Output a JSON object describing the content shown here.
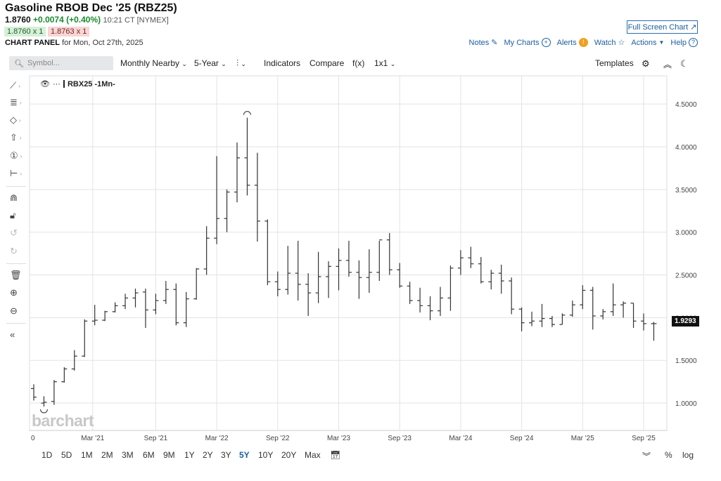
{
  "header": {
    "title": "Gasoline RBOB Dec '25 (RBZ25)",
    "last": "1.8760",
    "change": "+0.0074 (+0.40%)",
    "time": "10:21 CT [NYMEX]",
    "bid": "1.8760 x 1",
    "ask": "1.8763 x 1",
    "panel_label": "CHART PANEL",
    "panel_date": "for Mon, Oct 27th, 2025",
    "full_screen": "Full Screen Chart ↗"
  },
  "links": {
    "notes": "Notes",
    "my_charts": "My Charts",
    "alerts": "Alerts",
    "watch": "Watch",
    "actions": "Actions",
    "help": "Help"
  },
  "toolbar": {
    "search_placeholder": "Symbol...",
    "period": "Monthly Nearby",
    "range": "5-Year",
    "indicators": "Indicators",
    "compare": "Compare",
    "fx": "f(x)",
    "layout": "1x1",
    "templates": "Templates"
  },
  "series_label": "RBX25 -1Mn-",
  "last_price_tag": "1.9293",
  "watermark": "barchart",
  "timeframes": [
    "1D",
    "5D",
    "1M",
    "2M",
    "3M",
    "6M",
    "9M",
    "1Y",
    "2Y",
    "3Y",
    "5Y",
    "10Y",
    "20Y",
    "Max"
  ],
  "active_timeframe": "5Y",
  "bottom_right": {
    "percent": "%",
    "log": "log"
  },
  "colors": {
    "accent": "#1d5fa0",
    "up": "#1a8a2e",
    "bar": "#333333"
  },
  "chart_data": {
    "type": "ohlc",
    "y_ticks": [
      "1.0000",
      "1.5000",
      "2.0000",
      "2.5000",
      "3.0000",
      "3.5000",
      "4.0000",
      "4.5000"
    ],
    "ylim": [
      0.68,
      4.83
    ],
    "x_ticks": [
      {
        "label": "0",
        "month": 0
      },
      {
        "label": "Mar '21",
        "month": 5.8
      },
      {
        "label": "Sep '21",
        "month": 12
      },
      {
        "label": "Mar '22",
        "month": 18
      },
      {
        "label": "Sep '22",
        "month": 24
      },
      {
        "label": "Mar '23",
        "month": 30
      },
      {
        "label": "Sep '23",
        "month": 36
      },
      {
        "label": "Mar '24",
        "month": 42
      },
      {
        "label": "Sep '24",
        "month": 48
      },
      {
        "label": "Mar '25",
        "month": 54
      },
      {
        "label": "Sep '25",
        "month": 60
      }
    ],
    "bars": [
      [
        1.17,
        1.22,
        1.03,
        1.07
      ],
      [
        1.0,
        1.08,
        0.96,
        1.01
      ],
      [
        1.02,
        1.27,
        0.98,
        1.25
      ],
      [
        1.25,
        1.42,
        1.24,
        1.4
      ],
      [
        1.4,
        1.62,
        1.38,
        1.55
      ],
      [
        1.55,
        1.98,
        1.54,
        1.96
      ],
      [
        1.96,
        2.15,
        1.91,
        1.97
      ],
      [
        1.97,
        2.08,
        1.96,
        2.07
      ],
      [
        2.07,
        2.18,
        2.06,
        2.14
      ],
      [
        2.14,
        2.28,
        2.1,
        2.23
      ],
      [
        2.23,
        2.34,
        2.12,
        2.29
      ],
      [
        2.3,
        2.34,
        1.88,
        2.09
      ],
      [
        2.09,
        2.28,
        2.04,
        2.2
      ],
      [
        2.2,
        2.43,
        2.16,
        2.33
      ],
      [
        2.33,
        2.4,
        1.91,
        1.94
      ],
      [
        1.94,
        2.3,
        1.89,
        2.22
      ],
      [
        2.22,
        2.58,
        2.21,
        2.57
      ],
      [
        2.57,
        3.07,
        2.5,
        2.93
      ],
      [
        2.93,
        3.89,
        2.86,
        3.16
      ],
      [
        3.16,
        3.5,
        3.0,
        3.47
      ],
      [
        3.47,
        4.05,
        3.35,
        3.87
      ],
      [
        3.87,
        4.34,
        3.43,
        3.55
      ],
      [
        3.55,
        3.93,
        2.89,
        3.13
      ],
      [
        3.13,
        3.15,
        2.38,
        2.42
      ],
      [
        2.42,
        2.54,
        2.25,
        2.33
      ],
      [
        2.33,
        2.84,
        2.27,
        2.52
      ],
      [
        2.52,
        2.9,
        2.2,
        2.39
      ],
      [
        2.39,
        2.52,
        2.02,
        2.29
      ],
      [
        2.29,
        2.77,
        2.17,
        2.48
      ],
      [
        2.48,
        2.66,
        2.23,
        2.6
      ],
      [
        2.6,
        2.81,
        2.32,
        2.67
      ],
      [
        2.67,
        2.9,
        2.48,
        2.53
      ],
      [
        2.53,
        2.67,
        2.22,
        2.47
      ],
      [
        2.47,
        2.8,
        2.29,
        2.53
      ],
      [
        2.53,
        2.9,
        2.43,
        2.91
      ],
      [
        2.91,
        2.99,
        2.5,
        2.56
      ],
      [
        2.56,
        2.64,
        2.35,
        2.37
      ],
      [
        2.37,
        2.42,
        2.16,
        2.2
      ],
      [
        2.2,
        2.35,
        2.06,
        2.14
      ],
      [
        2.14,
        2.25,
        1.97,
        2.08
      ],
      [
        2.08,
        2.36,
        2.02,
        2.23
      ],
      [
        2.23,
        2.61,
        2.08,
        2.58
      ],
      [
        2.58,
        2.79,
        2.5,
        2.7
      ],
      [
        2.7,
        2.83,
        2.58,
        2.63
      ],
      [
        2.63,
        2.71,
        2.4,
        2.42
      ],
      [
        2.42,
        2.56,
        2.33,
        2.52
      ],
      [
        2.52,
        2.62,
        2.28,
        2.43
      ],
      [
        2.43,
        2.47,
        2.04,
        2.1
      ],
      [
        2.1,
        2.12,
        1.84,
        1.94
      ],
      [
        1.94,
        2.07,
        1.9,
        1.96
      ],
      [
        1.96,
        2.16,
        1.89,
        1.99
      ],
      [
        1.99,
        2.02,
        1.89,
        1.92
      ],
      [
        1.92,
        2.05,
        1.92,
        2.03
      ],
      [
        2.03,
        2.2,
        2.01,
        2.15
      ],
      [
        2.15,
        2.38,
        2.1,
        2.32
      ],
      [
        2.32,
        2.36,
        1.86,
        2.02
      ],
      [
        2.02,
        2.1,
        1.98,
        2.07
      ],
      [
        2.07,
        2.4,
        2.02,
        2.15
      ],
      [
        2.15,
        2.19,
        2.0,
        2.17
      ],
      [
        2.17,
        2.17,
        1.88,
        1.96
      ],
      [
        1.96,
        2.05,
        1.85,
        1.93
      ],
      [
        1.93,
        1.95,
        1.73,
        1.93
      ]
    ]
  }
}
